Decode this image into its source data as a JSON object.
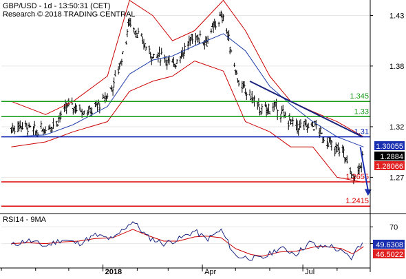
{
  "header": {
    "title": "GBP/USD - 1d - 13:50:31 (CET)",
    "credit": "Research © 2018 TRADING CENTRAL"
  },
  "colors": {
    "candles": "#000000",
    "bollinger": "#cc0000",
    "ma_blue": "#1f3fa8",
    "resistance_green": "#1a9b1a",
    "pivot_blue": "#0a1fb0",
    "support_red": "#dd0000",
    "trend_line": "#1a237e",
    "arrow": "#1a2fb0",
    "rsi_line": "#1a237e",
    "rsi_ma": "#cc0000"
  },
  "chart_data": [
    {
      "type": "candlestick",
      "title": "GBP/USD - 1d - 13:50:31 (CET)",
      "y_axis_ticks": [
        "1.43",
        "1.38",
        "1.32",
        "1.27"
      ],
      "ylim": [
        1.2355,
        1.4453
      ],
      "x_axis_labels": [
        "2018",
        "Apr",
        "Jul"
      ],
      "levels": [
        {
          "label": "1.345",
          "value": 1.345,
          "kind": "resistance",
          "color": "#1a9b1a"
        },
        {
          "label": "1.33",
          "value": 1.33,
          "kind": "resistance",
          "color": "#1a9b1a"
        },
        {
          "label": "1.31",
          "value": 1.31,
          "kind": "pivot",
          "color": "#0a1fb0"
        },
        {
          "label": "1.2655",
          "value": 1.2655,
          "kind": "support",
          "color": "#dd0000"
        },
        {
          "label": "1.2415",
          "value": 1.2415,
          "kind": "support",
          "color": "#dd0000"
        }
      ],
      "price_badges": [
        {
          "label": "1.30055",
          "value": 1.30055,
          "style": "blue"
        },
        {
          "label": "1.2884",
          "value": 1.2884,
          "style": "black"
        },
        {
          "label": "1.28066",
          "value": 1.28066,
          "style": "red"
        }
      ],
      "series_points": [
        [
          "2017-10-10",
          1.318
        ],
        [
          "2017-10-20",
          1.322
        ],
        [
          "2017-11-01",
          1.315
        ],
        [
          "2017-11-10",
          1.318
        ],
        [
          "2017-11-20",
          1.325
        ],
        [
          "2017-12-01",
          1.342
        ],
        [
          "2017-12-10",
          1.338
        ],
        [
          "2017-12-20",
          1.335
        ],
        [
          "2018-01-01",
          1.345
        ],
        [
          "2018-01-10",
          1.36
        ],
        [
          "2018-01-20",
          1.395
        ],
        [
          "2018-01-25",
          1.425
        ],
        [
          "2018-02-05",
          1.405
        ],
        [
          "2018-02-15",
          1.39
        ],
        [
          "2018-02-25",
          1.39
        ],
        [
          "2018-03-05",
          1.38
        ],
        [
          "2018-03-15",
          1.395
        ],
        [
          "2018-03-25",
          1.41
        ],
        [
          "2018-04-05",
          1.405
        ],
        [
          "2018-04-15",
          1.425
        ],
        [
          "2018-04-20",
          1.43
        ],
        [
          "2018-04-27",
          1.395
        ],
        [
          "2018-05-05",
          1.36
        ],
        [
          "2018-05-15",
          1.35
        ],
        [
          "2018-05-25",
          1.335
        ],
        [
          "2018-06-05",
          1.34
        ],
        [
          "2018-06-15",
          1.33
        ],
        [
          "2018-06-25",
          1.32
        ],
        [
          "2018-07-05",
          1.32
        ],
        [
          "2018-07-12",
          1.322
        ],
        [
          "2018-07-20",
          1.308
        ],
        [
          "2018-07-25",
          1.305
        ],
        [
          "2018-07-30",
          1.295
        ],
        [
          "2018-08-05",
          1.3
        ],
        [
          "2018-08-10",
          1.285
        ],
        [
          "2018-08-15",
          1.27
        ],
        [
          "2018-08-20",
          1.278
        ],
        [
          "2018-08-25",
          1.288
        ]
      ],
      "bollinger_upper": [
        [
          "2017-10-10",
          1.345
        ],
        [
          "2017-11-10",
          1.332
        ],
        [
          "2017-12-05",
          1.345
        ],
        [
          "2018-01-05",
          1.37
        ],
        [
          "2018-01-25",
          1.445
        ],
        [
          "2018-02-15",
          1.43
        ],
        [
          "2018-03-05",
          1.405
        ],
        [
          "2018-03-25",
          1.415
        ],
        [
          "2018-04-20",
          1.445
        ],
        [
          "2018-05-10",
          1.415
        ],
        [
          "2018-06-01",
          1.37
        ],
        [
          "2018-06-20",
          1.345
        ],
        [
          "2018-07-10",
          1.335
        ],
        [
          "2018-08-01",
          1.325
        ],
        [
          "2018-08-25",
          1.31
        ]
      ],
      "bollinger_lower": [
        [
          "2017-10-10",
          1.3
        ],
        [
          "2017-11-10",
          1.305
        ],
        [
          "2017-12-05",
          1.315
        ],
        [
          "2018-01-05",
          1.325
        ],
        [
          "2018-01-25",
          1.355
        ],
        [
          "2018-02-15",
          1.365
        ],
        [
          "2018-03-05",
          1.37
        ],
        [
          "2018-03-25",
          1.385
        ],
        [
          "2018-04-20",
          1.375
        ],
        [
          "2018-05-10",
          1.325
        ],
        [
          "2018-06-01",
          1.315
        ],
        [
          "2018-06-20",
          1.3
        ],
        [
          "2018-07-10",
          1.3
        ],
        [
          "2018-08-01",
          1.27
        ],
        [
          "2018-08-25",
          1.265
        ]
      ],
      "moving_average": [
        [
          "2017-10-10",
          1.31
        ],
        [
          "2017-11-10",
          1.312
        ],
        [
          "2017-12-05",
          1.322
        ],
        [
          "2018-01-05",
          1.34
        ],
        [
          "2018-01-25",
          1.372
        ],
        [
          "2018-02-15",
          1.386
        ],
        [
          "2018-03-05",
          1.39
        ],
        [
          "2018-03-25",
          1.4
        ],
        [
          "2018-04-20",
          1.412
        ],
        [
          "2018-05-10",
          1.395
        ],
        [
          "2018-06-01",
          1.36
        ],
        [
          "2018-06-20",
          1.342
        ],
        [
          "2018-07-10",
          1.325
        ],
        [
          "2018-08-01",
          1.31
        ],
        [
          "2018-08-25",
          1.3
        ]
      ],
      "trend_line": [
        [
          "2018-05-14",
          1.365
        ],
        [
          "2018-08-24",
          1.31
        ]
      ],
      "forecast_arrow": [
        [
          "2018-08-22",
          1.3
        ],
        [
          "2018-08-29",
          1.253
        ]
      ]
    },
    {
      "type": "line",
      "title": "RSI14 - 9MA",
      "y_axis_ticks": [
        "70",
        "50"
      ],
      "ylim": [
        22.6,
        84.2
      ],
      "series": [
        {
          "name": "RSI14",
          "values": [
            [
              "2017-10-10",
              48
            ],
            [
              "2017-10-25",
              54
            ],
            [
              "2017-11-10",
              47
            ],
            [
              "2017-11-25",
              55
            ],
            [
              "2017-12-10",
              50
            ],
            [
              "2017-12-25",
              60
            ],
            [
              "2018-01-10",
              55
            ],
            [
              "2018-01-20",
              68
            ],
            [
              "2018-01-28",
              77
            ],
            [
              "2018-02-10",
              58
            ],
            [
              "2018-02-25",
              50
            ],
            [
              "2018-03-10",
              55
            ],
            [
              "2018-03-25",
              65
            ],
            [
              "2018-04-05",
              55
            ],
            [
              "2018-04-18",
              66
            ],
            [
              "2018-05-01",
              35
            ],
            [
              "2018-05-15",
              33
            ],
            [
              "2018-05-25",
              32
            ],
            [
              "2018-06-10",
              45
            ],
            [
              "2018-06-25",
              38
            ],
            [
              "2018-07-08",
              52
            ],
            [
              "2018-07-15",
              45
            ],
            [
              "2018-07-25",
              48
            ],
            [
              "2018-08-05",
              40
            ],
            [
              "2018-08-15",
              32
            ],
            [
              "2018-08-20",
              48
            ],
            [
              "2018-08-25",
              49.6
            ]
          ]
        },
        {
          "name": "9MA",
          "values": [
            [
              "2017-10-10",
              50
            ],
            [
              "2017-10-25",
              51
            ],
            [
              "2017-11-10",
              50
            ],
            [
              "2017-11-25",
              52
            ],
            [
              "2017-12-10",
              53
            ],
            [
              "2017-12-25",
              56
            ],
            [
              "2018-01-10",
              57
            ],
            [
              "2018-01-28",
              67
            ],
            [
              "2018-02-10",
              60
            ],
            [
              "2018-02-25",
              53
            ],
            [
              "2018-03-10",
              53
            ],
            [
              "2018-03-25",
              58
            ],
            [
              "2018-04-05",
              59
            ],
            [
              "2018-04-18",
              57
            ],
            [
              "2018-05-01",
              44
            ],
            [
              "2018-05-15",
              37
            ],
            [
              "2018-05-25",
              35
            ],
            [
              "2018-06-10",
              40
            ],
            [
              "2018-06-25",
              41
            ],
            [
              "2018-07-08",
              45
            ],
            [
              "2018-07-15",
              47
            ],
            [
              "2018-07-25",
              46
            ],
            [
              "2018-08-05",
              44
            ],
            [
              "2018-08-15",
              38
            ],
            [
              "2018-08-20",
              42
            ],
            [
              "2018-08-25",
              46.5
            ]
          ]
        }
      ],
      "value_badges": [
        {
          "label": "49.6308",
          "value": 49.6308,
          "style": "blue"
        },
        {
          "label": "46.5022",
          "value": 46.5022,
          "style": "red"
        }
      ]
    }
  ]
}
